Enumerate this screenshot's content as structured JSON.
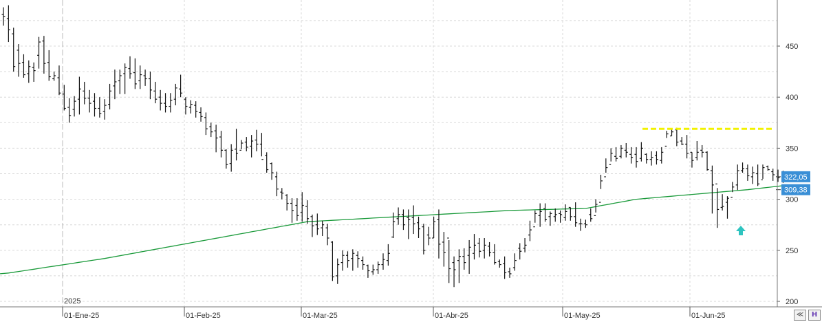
{
  "colors": {
    "background": "#ffffff",
    "bars": "#111111",
    "moving_average": "#1a9a3a",
    "resistance": "#f2f200",
    "price_tag": "#3a8fd6",
    "arrow": "#2ec4c0",
    "grid": "#d8d8d8"
  },
  "chart_data": {
    "type": "ohlc",
    "year_label": "2025",
    "x_ticks": [
      {
        "label": "01-Ene-25",
        "index": 19
      },
      {
        "label": "01-Feb-25",
        "index": 39
      },
      {
        "label": "01-Mar-25",
        "index": 61
      },
      {
        "label": "01-Abr-25",
        "index": 85
      },
      {
        "label": "01-May-25",
        "index": 109
      },
      {
        "label": "01-Jun-25",
        "index": 130
      }
    ],
    "y_ticks": [
      450,
      400,
      350,
      300,
      250,
      200
    ],
    "ylim": [
      198,
      490
    ],
    "grid": true,
    "ohlc": [
      [
        481,
        470,
        488,
        479
      ],
      [
        477,
        454,
        490,
        466
      ],
      [
        462,
        425,
        468,
        430
      ],
      [
        446,
        420,
        452,
        433
      ],
      [
        434,
        419,
        442,
        422
      ],
      [
        423,
        414,
        436,
        430
      ],
      [
        429,
        415,
        434,
        426
      ],
      [
        441,
        428,
        459,
        454
      ],
      [
        455,
        423,
        460,
        433
      ],
      [
        434,
        416,
        446,
        420
      ],
      [
        418,
        416,
        425,
        421
      ],
      [
        419,
        402,
        431,
        404
      ],
      [
        403,
        387,
        412,
        389
      ],
      [
        390,
        375,
        399,
        382
      ],
      [
        388,
        381,
        401,
        396
      ],
      [
        398,
        383,
        420,
        408
      ],
      [
        406,
        393,
        415,
        399
      ],
      [
        399,
        385,
        407,
        394
      ],
      [
        396,
        381,
        404,
        389
      ],
      [
        389,
        380,
        400,
        384
      ],
      [
        386,
        378,
        398,
        392
      ],
      [
        393,
        388,
        413,
        406
      ],
      [
        411,
        398,
        427,
        415
      ],
      [
        416,
        403,
        427,
        421
      ],
      [
        423,
        403,
        433,
        429
      ],
      [
        428,
        418,
        440,
        423
      ],
      [
        424,
        408,
        438,
        413
      ],
      [
        416,
        408,
        431,
        422
      ],
      [
        421,
        411,
        427,
        418
      ],
      [
        418,
        398,
        425,
        407
      ],
      [
        406,
        394,
        415,
        398
      ],
      [
        400,
        387,
        407,
        394
      ],
      [
        394,
        385,
        404,
        391
      ],
      [
        391,
        385,
        404,
        397
      ],
      [
        398,
        392,
        413,
        409
      ],
      [
        408,
        400,
        422,
        404
      ],
      [
        398,
        383,
        400,
        391
      ],
      [
        390,
        384,
        397,
        393
      ],
      [
        392,
        380,
        396,
        386
      ],
      [
        385,
        376,
        390,
        381
      ],
      [
        380,
        363,
        385,
        369
      ],
      [
        371,
        361,
        375,
        366
      ],
      [
        367,
        346,
        373,
        360
      ],
      [
        361,
        341,
        367,
        348
      ],
      [
        348,
        330,
        349,
        334
      ],
      [
        335,
        327,
        354,
        348
      ],
      [
        349,
        338,
        369,
        345
      ],
      [
        348,
        349,
        358,
        355
      ],
      [
        356,
        347,
        361,
        351
      ],
      [
        352,
        341,
        363,
        357
      ],
      [
        358,
        347,
        368,
        354
      ],
      [
        354,
        342,
        365,
        339
      ],
      [
        343,
        326,
        346,
        329
      ],
      [
        335,
        319,
        336,
        326
      ],
      [
        322,
        303,
        327,
        310
      ],
      [
        307,
        300,
        311,
        306
      ],
      [
        304,
        289,
        305,
        296
      ],
      [
        296,
        277,
        301,
        289
      ],
      [
        294,
        279,
        301,
        284
      ],
      [
        287,
        278,
        307,
        294
      ],
      [
        293,
        276,
        299,
        281
      ],
      [
        283,
        263,
        285,
        274
      ],
      [
        275,
        265,
        286,
        271
      ],
      [
        272,
        264,
        279,
        275
      ],
      [
        272,
        255,
        276,
        262
      ],
      [
        258,
        220,
        259,
        224
      ],
      [
        225,
        217,
        242,
        236
      ],
      [
        238,
        230,
        250,
        245
      ],
      [
        245,
        233,
        249,
        240
      ],
      [
        242,
        230,
        251,
        247
      ],
      [
        245,
        233,
        249,
        242
      ],
      [
        240,
        231,
        244,
        236
      ],
      [
        235,
        223,
        236,
        230
      ],
      [
        229,
        226,
        236,
        231
      ],
      [
        231,
        227,
        239,
        236
      ],
      [
        236,
        231,
        247,
        241
      ],
      [
        240,
        235,
        256,
        247
      ],
      [
        263,
        262,
        287,
        278
      ],
      [
        281,
        275,
        292,
        285
      ],
      [
        285,
        270,
        290,
        275
      ],
      [
        282,
        261,
        290,
        280
      ],
      [
        282,
        266,
        294,
        276
      ],
      [
        277,
        262,
        283,
        271
      ],
      [
        273,
        246,
        276,
        250
      ],
      [
        265,
        255,
        273,
        262
      ],
      [
        262,
        262,
        283,
        278
      ],
      [
        280,
        242,
        290,
        256
      ],
      [
        258,
        234,
        268,
        248
      ],
      [
        262,
        218,
        260,
        232
      ],
      [
        238,
        214,
        244,
        231
      ],
      [
        240,
        218,
        251,
        244
      ],
      [
        244,
        231,
        252,
        238
      ],
      [
        245,
        227,
        260,
        253
      ],
      [
        247,
        241,
        266,
        255
      ],
      [
        257,
        243,
        262,
        249
      ],
      [
        250,
        242,
        262,
        255
      ],
      [
        254,
        244,
        258,
        248
      ],
      [
        248,
        236,
        256,
        238
      ],
      [
        239,
        233,
        241,
        236
      ],
      [
        237,
        222,
        244,
        228
      ],
      [
        229,
        223,
        233,
        227
      ],
      [
        233,
        230,
        247,
        240
      ],
      [
        252,
        241,
        257,
        249
      ],
      [
        252,
        248,
        262,
        255
      ],
      [
        265,
        259,
        279,
        270
      ],
      [
        273,
        277,
        289,
        286
      ],
      [
        284,
        273,
        296,
        288
      ],
      [
        291,
        278,
        296,
        280
      ],
      [
        283,
        274,
        288,
        286
      ],
      [
        283,
        278,
        291,
        285
      ],
      [
        286,
        277,
        289,
        285
      ],
      [
        282,
        279,
        295,
        288
      ],
      [
        292,
        279,
        292,
        283
      ],
      [
        283,
        273,
        297,
        277
      ],
      [
        276,
        269,
        281,
        276
      ],
      [
        276,
        272,
        280,
        275
      ],
      [
        285,
        278,
        291,
        281
      ],
      [
        284,
        287,
        300,
        295
      ],
      [
        297,
        310,
        324,
        318
      ],
      [
        322,
        326,
        340,
        331
      ],
      [
        334,
        337,
        350,
        345
      ],
      [
        342,
        337,
        351,
        340
      ],
      [
        342,
        340,
        353,
        350
      ],
      [
        348,
        341,
        355,
        346
      ],
      [
        344,
        335,
        351,
        341
      ],
      [
        344,
        331,
        351,
        337
      ],
      [
        340,
        337,
        356,
        350
      ],
      [
        344,
        335,
        345,
        339
      ],
      [
        339,
        333,
        347,
        341
      ],
      [
        343,
        334,
        347,
        339
      ],
      [
        338,
        335,
        351,
        346
      ],
      [
        352,
        360,
        367,
        364
      ],
      [
        362,
        362,
        369,
        366
      ],
      [
        368,
        352,
        370,
        356
      ],
      [
        357,
        353,
        361,
        354
      ],
      [
        354,
        340,
        363,
        345
      ],
      [
        346,
        331,
        346,
        338
      ],
      [
        341,
        338,
        357,
        346
      ],
      [
        348,
        341,
        353,
        346
      ],
      [
        346,
        328,
        347,
        329
      ],
      [
        328,
        286,
        333,
        314
      ],
      [
        315,
        272,
        311,
        290
      ],
      [
        292,
        289,
        305,
        293
      ],
      [
        297,
        281,
        303,
        301
      ],
      [
        302,
        307,
        317,
        312
      ],
      [
        314,
        309,
        334,
        328
      ],
      [
        328,
        326,
        336,
        330
      ],
      [
        330,
        318,
        334,
        323
      ],
      [
        322,
        315,
        332,
        326
      ],
      [
        325,
        313,
        334,
        315
      ],
      [
        319,
        320,
        334,
        331
      ],
      [
        332,
        328,
        333,
        329
      ],
      [
        327,
        318,
        330,
        324
      ],
      [
        322,
        317,
        329,
        321
      ],
      [
        322,
        316,
        328,
        321
      ]
    ],
    "moving_average": [
      {
        "i": 0,
        "v": 227
      },
      {
        "i": 20,
        "v": 242
      },
      {
        "i": 60,
        "v": 278
      },
      {
        "i": 100,
        "v": 289
      },
      {
        "i": 115,
        "v": 291
      },
      {
        "i": 125,
        "v": 300
      },
      {
        "i": 147,
        "v": 309.38
      }
    ],
    "resistance": 369,
    "last_price_label": "322,05",
    "ma_label": "309,38",
    "last_price": 322.05,
    "ma_value": 309.38
  },
  "toolbar": {
    "zoom_icon": "double-chevron-icon",
    "h_label": "H"
  }
}
